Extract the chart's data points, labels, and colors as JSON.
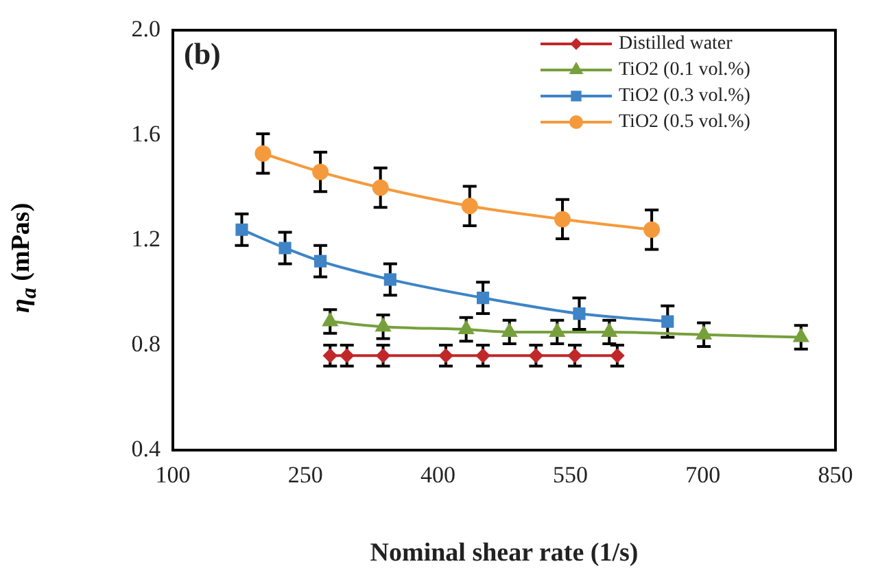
{
  "chart_data": {
    "type": "line",
    "xlabel": "Nominal shear rate (1/s)",
    "ylabel": "η$_{a}$ (mPas)",
    "annotations": [
      "(b)"
    ],
    "xlim": [
      100,
      850
    ],
    "xticks": [
      100,
      250,
      400,
      550,
      700,
      850
    ],
    "ylim": [
      0.4,
      2.0
    ],
    "yticks": [
      0.4,
      0.8,
      1.2,
      1.6,
      {
        "value": 2.0,
        "label": "2.0"
      }
    ],
    "grid": false,
    "legend": "top right",
    "series": [
      {
        "name": "Distilled water",
        "color": "#c0282a",
        "marker": "diamond",
        "x": [
          278,
          297,
          338,
          409,
          451,
          511,
          555,
          603
        ],
        "values": [
          0.76,
          0.76,
          0.76,
          0.76,
          0.76,
          0.76,
          0.76,
          0.76
        ],
        "errors": [
          0.04,
          0.04,
          0.04,
          0.04,
          0.04,
          0.04,
          0.04,
          0.04
        ]
      },
      {
        "name": "TiO2 (0.1 vol.%)",
        "color": "#77a03c",
        "marker": "triangle",
        "x": [
          278,
          338,
          432,
          481,
          535,
          594,
          701,
          811
        ],
        "values": [
          0.89,
          0.87,
          0.86,
          0.85,
          0.85,
          0.85,
          0.84,
          0.83
        ],
        "errors": [
          0.045,
          0.045,
          0.045,
          0.045,
          0.045,
          0.045,
          0.045,
          0.045
        ]
      },
      {
        "name": "TiO2 (0.3 vol.%)",
        "color": "#3e84c6",
        "marker": "square",
        "x": [
          178,
          227,
          267,
          346,
          451,
          560,
          660
        ],
        "values": [
          1.24,
          1.17,
          1.12,
          1.05,
          0.98,
          0.92,
          0.89
        ],
        "errors": [
          0.06,
          0.06,
          0.06,
          0.06,
          0.06,
          0.06,
          0.06
        ]
      },
      {
        "name": "TiO2 (0.5 vol.%)",
        "color": "#f59a3c",
        "marker": "circle",
        "x": [
          202,
          267,
          335,
          436,
          541,
          642
        ],
        "values": [
          1.53,
          1.46,
          1.4,
          1.33,
          1.28,
          1.24
        ],
        "errors": [
          0.075,
          0.075,
          0.075,
          0.075,
          0.075,
          0.075
        ]
      }
    ]
  }
}
